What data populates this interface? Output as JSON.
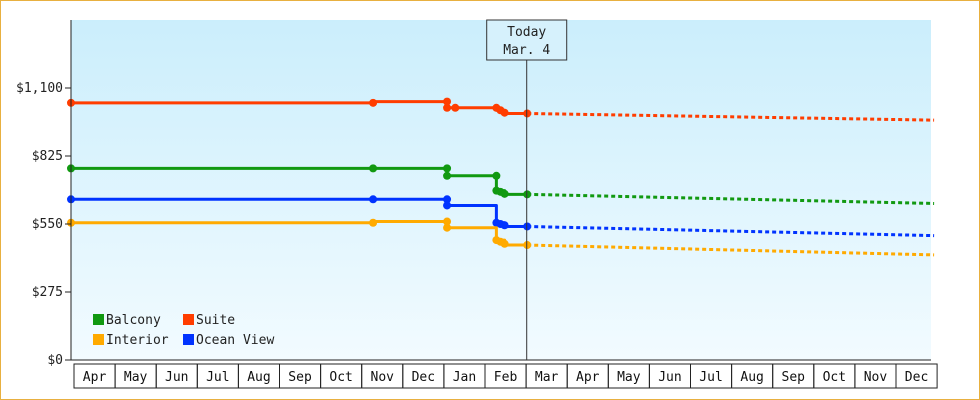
{
  "chart_data": {
    "type": "line",
    "ylim": [
      0,
      1375
    ],
    "y_ticks": [
      {
        "value": 0,
        "label": "$0"
      },
      {
        "value": 275,
        "label": "$275"
      },
      {
        "value": 550,
        "label": "$550"
      },
      {
        "value": 825,
        "label": "$825"
      },
      {
        "value": 1100,
        "label": "$1,100"
      }
    ],
    "months": [
      "Apr",
      "May",
      "Jun",
      "Jul",
      "Aug",
      "Sep",
      "Oct",
      "Nov",
      "Dec",
      "Jan",
      "Feb",
      "Mar",
      "Apr",
      "May",
      "Jun",
      "Jul",
      "Aug",
      "Sep",
      "Oct",
      "Nov",
      "Dec"
    ],
    "today": {
      "line1": "Today",
      "line2": "Mar. 4",
      "x": 11.1
    },
    "legend_position": "bottom-left",
    "series": [
      {
        "name": "Suite",
        "color": "#ff3d00",
        "solid": [
          [
            0,
            1040
          ],
          [
            7.35,
            1040
          ],
          [
            7.35,
            1045
          ],
          [
            9.15,
            1045
          ],
          [
            9.15,
            1020
          ],
          [
            9.35,
            1020
          ],
          [
            9.35,
            1020
          ],
          [
            10.35,
            1020
          ],
          [
            10.35,
            1010
          ],
          [
            10.55,
            1010
          ],
          [
            10.55,
            997
          ],
          [
            11.1,
            997
          ]
        ],
        "dotted": [
          [
            11.1,
            997
          ],
          [
            21,
            970
          ]
        ]
      },
      {
        "name": "Balcony",
        "color": "#119911",
        "solid": [
          [
            0,
            775
          ],
          [
            7.35,
            775
          ],
          [
            7.35,
            775
          ],
          [
            9.15,
            775
          ],
          [
            9.15,
            745
          ],
          [
            10.35,
            745
          ],
          [
            10.35,
            685
          ],
          [
            10.55,
            685
          ],
          [
            10.55,
            670
          ],
          [
            11.1,
            670
          ]
        ],
        "dotted": [
          [
            11.1,
            670
          ],
          [
            21,
            633
          ]
        ]
      },
      {
        "name": "Ocean View",
        "color": "#0033ff",
        "solid": [
          [
            0,
            650
          ],
          [
            7.35,
            650
          ],
          [
            7.35,
            650
          ],
          [
            9.15,
            650
          ],
          [
            9.15,
            625
          ],
          [
            10.35,
            625
          ],
          [
            10.35,
            555
          ],
          [
            10.55,
            555
          ],
          [
            10.55,
            540
          ],
          [
            11.1,
            540
          ]
        ],
        "dotted": [
          [
            11.1,
            540
          ],
          [
            21,
            503
          ]
        ]
      },
      {
        "name": "Interior",
        "color": "#ffaa00",
        "solid": [
          [
            0,
            555
          ],
          [
            7.35,
            555
          ],
          [
            7.35,
            560
          ],
          [
            9.15,
            560
          ],
          [
            9.15,
            535
          ],
          [
            10.35,
            535
          ],
          [
            10.35,
            485
          ],
          [
            10.55,
            485
          ],
          [
            10.55,
            465
          ],
          [
            11.1,
            465
          ]
        ],
        "dotted": [
          [
            11.1,
            465
          ],
          [
            21,
            425
          ]
        ]
      }
    ],
    "markers": {
      "Suite": [
        [
          0,
          1040
        ],
        [
          7.35,
          1040
        ],
        [
          9.15,
          1045
        ],
        [
          9.15,
          1020
        ],
        [
          9.35,
          1020
        ],
        [
          10.35,
          1020
        ],
        [
          10.45,
          1010
        ],
        [
          10.55,
          1000
        ],
        [
          11.1,
          997
        ]
      ],
      "Balcony": [
        [
          0,
          775
        ],
        [
          7.35,
          775
        ],
        [
          9.15,
          775
        ],
        [
          9.15,
          745
        ],
        [
          10.35,
          745
        ],
        [
          10.35,
          685
        ],
        [
          10.45,
          680
        ],
        [
          10.55,
          672
        ],
        [
          11.1,
          670
        ]
      ],
      "Ocean View": [
        [
          0,
          650
        ],
        [
          7.35,
          650
        ],
        [
          9.15,
          650
        ],
        [
          9.15,
          625
        ],
        [
          10.35,
          555
        ],
        [
          10.45,
          550
        ],
        [
          10.55,
          545
        ],
        [
          11.1,
          540
        ]
      ],
      "Interior": [
        [
          0,
          555
        ],
        [
          7.35,
          555
        ],
        [
          9.15,
          560
        ],
        [
          9.15,
          535
        ],
        [
          10.35,
          485
        ],
        [
          10.45,
          478
        ],
        [
          10.55,
          470
        ],
        [
          11.1,
          465
        ]
      ]
    },
    "legend": [
      {
        "name": "Balcony",
        "color": "#119911"
      },
      {
        "name": "Suite",
        "color": "#ff3d00"
      },
      {
        "name": "Interior",
        "color": "#ffaa00"
      },
      {
        "name": "Ocean View",
        "color": "#0033ff"
      }
    ]
  }
}
